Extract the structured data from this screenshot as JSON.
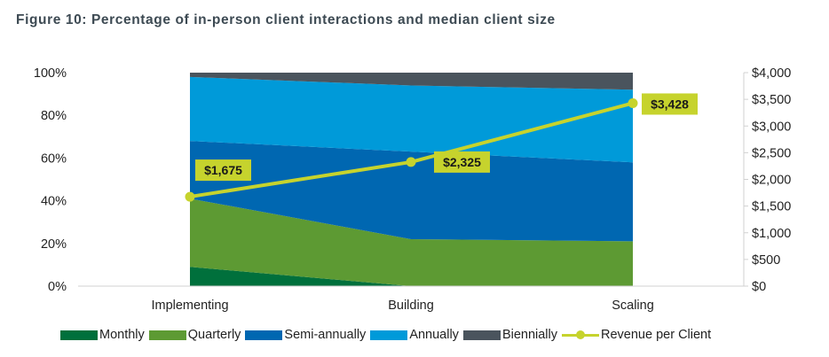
{
  "title": "Figure 10: Percentage of in-person client interactions and median client size",
  "chart_data": {
    "type": "area",
    "title": "Figure 10: Percentage of in-person client interactions and median client size",
    "categories": [
      "Implementing",
      "Building",
      "Scaling"
    ],
    "series": [
      {
        "name": "Monthly",
        "color": "#00703c",
        "values": [
          9,
          0,
          0
        ]
      },
      {
        "name": "Quarterly",
        "color": "#5d9a33",
        "values": [
          32,
          22,
          21
        ]
      },
      {
        "name": "Semi-annually",
        "color": "#0067b1",
        "values": [
          27,
          41,
          37
        ]
      },
      {
        "name": "Annually",
        "color": "#009ad9",
        "values": [
          30,
          31,
          34
        ]
      },
      {
        "name": "Biennially",
        "color": "#4a545d",
        "values": [
          2,
          6,
          8
        ]
      }
    ],
    "line_series": {
      "name": "Revenue per Client",
      "color": "#c6d32d",
      "values": [
        1675,
        2325,
        3428
      ],
      "labels": [
        "$1,675",
        "$2,325",
        "$3,428"
      ]
    },
    "y_left": {
      "ylim": [
        0,
        100
      ],
      "ticks": [
        "0%",
        "20%",
        "40%",
        "60%",
        "80%",
        "100%"
      ]
    },
    "y_right": {
      "ylim": [
        0,
        4000
      ],
      "ticks": [
        "$0",
        "$500",
        "$1,000",
        "$1,500",
        "$2,000",
        "$2,500",
        "$3,000",
        "$3,500",
        "$4,000"
      ]
    },
    "stacked": true,
    "grid": false,
    "legend_position": "bottom"
  }
}
